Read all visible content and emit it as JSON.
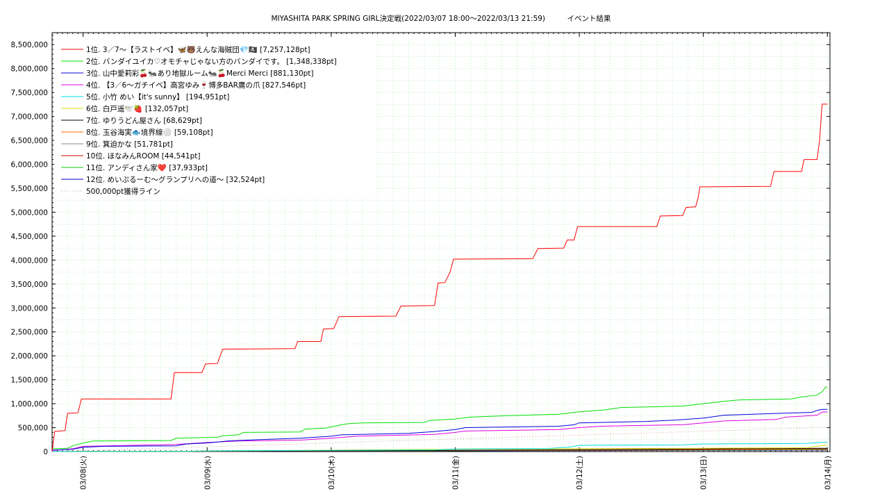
{
  "chart_data": {
    "type": "line",
    "title": "MIYASHITA PARK SPRING GIRL決定戦(2022/03/07 18:00～2022/03/13 21:59)　　　イベント結果",
    "xlabel": "",
    "ylabel": "",
    "x_range": [
      "2022-03-07 18:00",
      "2022-03-14 00:30"
    ],
    "ylim": [
      0,
      8750000
    ],
    "y_ticks": [
      0,
      500000,
      1000000,
      1500000,
      2000000,
      2500000,
      3000000,
      3500000,
      4000000,
      4500000,
      5000000,
      5500000,
      6000000,
      6500000,
      7000000,
      7500000,
      8000000,
      8500000
    ],
    "y_tick_labels": [
      "0",
      "500,000",
      "1,000,000",
      "1,500,000",
      "2,000,000",
      "2,500,000",
      "3,000,000",
      "3,500,000",
      "4,000,000",
      "4,500,000",
      "5,000,000",
      "5,500,000",
      "6,000,000",
      "6,500,000",
      "7,000,000",
      "7,500,000",
      "8,000,000",
      "8,500,000"
    ],
    "x_ticks": [
      "2022-03-08 00:00",
      "2022-03-09 00:00",
      "2022-03-10 00:00",
      "2022-03-11 00:00",
      "2022-03-12 00:00",
      "2022-03-13 00:00",
      "2022-03-14 00:00"
    ],
    "x_tick_labels": [
      "03/08(火)",
      "03/09(水)",
      "03/10(木)",
      "03/11(金)",
      "03/12(土)",
      "03/13(日)",
      "03/14(月)"
    ],
    "grid": true,
    "legend_position": "top-left",
    "series": [
      {
        "name": "1位. 3／7〜【ラストイベ】🦋🐻えんな海賊団💎🏴‍☠️ [7,257,128pt]",
        "color": "#ff0000",
        "style": "step",
        "points": [
          [
            "2022-03-07 18:00",
            0
          ],
          [
            "2022-03-07 18:30",
            420000
          ],
          [
            "2022-03-07 20:30",
            440000
          ],
          [
            "2022-03-07 21:00",
            800000
          ],
          [
            "2022-03-07 23:00",
            810000
          ],
          [
            "2022-03-07 23:40",
            1100000
          ],
          [
            "2022-03-08 17:00",
            1100000
          ],
          [
            "2022-03-08 17:40",
            1650000
          ],
          [
            "2022-03-08 23:00",
            1650000
          ],
          [
            "2022-03-08 23:40",
            1830000
          ],
          [
            "2022-03-09 02:00",
            1840000
          ],
          [
            "2022-03-09 03:00",
            2140000
          ],
          [
            "2022-03-09 17:00",
            2150000
          ],
          [
            "2022-03-09 17:30",
            2300000
          ],
          [
            "2022-03-09 22:00",
            2300000
          ],
          [
            "2022-03-09 22:30",
            2560000
          ],
          [
            "2022-03-10 00:30",
            2570000
          ],
          [
            "2022-03-10 01:30",
            2820000
          ],
          [
            "2022-03-10 12:30",
            2830000
          ],
          [
            "2022-03-10 13:30",
            3040000
          ],
          [
            "2022-03-10 20:00",
            3050000
          ],
          [
            "2022-03-10 20:40",
            3520000
          ],
          [
            "2022-03-10 22:00",
            3530000
          ],
          [
            "2022-03-10 23:00",
            3750000
          ],
          [
            "2022-03-10 23:40",
            4020000
          ],
          [
            "2022-03-11 15:00",
            4030000
          ],
          [
            "2022-03-11 16:00",
            4240000
          ],
          [
            "2022-03-11 21:00",
            4250000
          ],
          [
            "2022-03-11 21:40",
            4420000
          ],
          [
            "2022-03-11 23:00",
            4420000
          ],
          [
            "2022-03-11 23:40",
            4700000
          ],
          [
            "2022-03-12 15:00",
            4700000
          ],
          [
            "2022-03-12 15:40",
            4920000
          ],
          [
            "2022-03-12 20:00",
            4930000
          ],
          [
            "2022-03-12 20:40",
            5100000
          ],
          [
            "2022-03-12 22:30",
            5110000
          ],
          [
            "2022-03-12 23:00",
            5300000
          ],
          [
            "2022-03-12 23:20",
            5530000
          ],
          [
            "2022-03-13 13:00",
            5540000
          ],
          [
            "2022-03-13 13:40",
            5850000
          ],
          [
            "2022-03-13 19:00",
            5850000
          ],
          [
            "2022-03-13 19:30",
            6100000
          ],
          [
            "2022-03-13 22:00",
            6100000
          ],
          [
            "2022-03-13 22:30",
            6500000
          ],
          [
            "2022-03-13 22:50",
            7050000
          ],
          [
            "2022-03-13 23:00",
            7257128
          ],
          [
            "2022-03-14 00:00",
            7257128
          ]
        ]
      },
      {
        "name": "2位. バンダイユイカ♡オモチャじゃない方のバンダイです。 [1,348,338pt]",
        "color": "#00e000",
        "style": "step",
        "points": [
          [
            "2022-03-07 18:00",
            60000
          ],
          [
            "2022-03-07 21:00",
            70000
          ],
          [
            "2022-03-07 22:00",
            120000
          ],
          [
            "2022-03-08 00:00",
            180000
          ],
          [
            "2022-03-08 02:00",
            220000
          ],
          [
            "2022-03-08 17:00",
            230000
          ],
          [
            "2022-03-08 18:00",
            280000
          ],
          [
            "2022-03-09 02:00",
            300000
          ],
          [
            "2022-03-09 03:00",
            330000
          ],
          [
            "2022-03-09 06:00",
            350000
          ],
          [
            "2022-03-09 07:00",
            400000
          ],
          [
            "2022-03-09 18:00",
            410000
          ],
          [
            "2022-03-09 19:00",
            470000
          ],
          [
            "2022-03-09 23:00",
            490000
          ],
          [
            "2022-03-10 00:00",
            520000
          ],
          [
            "2022-03-10 03:00",
            580000
          ],
          [
            "2022-03-10 06:00",
            600000
          ],
          [
            "2022-03-10 18:00",
            610000
          ],
          [
            "2022-03-10 19:00",
            650000
          ],
          [
            "2022-03-11 00:00",
            680000
          ],
          [
            "2022-03-11 03:00",
            720000
          ],
          [
            "2022-03-11 10:00",
            750000
          ],
          [
            "2022-03-11 20:00",
            780000
          ],
          [
            "2022-03-12 00:00",
            830000
          ],
          [
            "2022-03-12 05:00",
            870000
          ],
          [
            "2022-03-12 08:00",
            920000
          ],
          [
            "2022-03-12 20:00",
            950000
          ],
          [
            "2022-03-13 00:00",
            1000000
          ],
          [
            "2022-03-13 04:00",
            1050000
          ],
          [
            "2022-03-13 07:00",
            1080000
          ],
          [
            "2022-03-13 17:00",
            1100000
          ],
          [
            "2022-03-13 19:00",
            1140000
          ],
          [
            "2022-03-13 22:00",
            1180000
          ],
          [
            "2022-03-13 23:00",
            1250000
          ],
          [
            "2022-03-13 23:40",
            1348338
          ],
          [
            "2022-03-14 00:00",
            1348338
          ]
        ]
      },
      {
        "name": "3位. 山中愛莉彩🍒🐜あり地獄ルーム🐜🍒Merci Merci [881,130pt]",
        "color": "#0000dd",
        "style": "step",
        "points": [
          [
            "2022-03-07 18:00",
            30000
          ],
          [
            "2022-03-07 22:00",
            50000
          ],
          [
            "2022-03-08 00:00",
            90000
          ],
          [
            "2022-03-08 04:00",
            110000
          ],
          [
            "2022-03-08 18:00",
            120000
          ],
          [
            "2022-03-08 20:00",
            160000
          ],
          [
            "2022-03-09 00:00",
            180000
          ],
          [
            "2022-03-09 04:00",
            220000
          ],
          [
            "2022-03-09 10:00",
            250000
          ],
          [
            "2022-03-09 18:00",
            280000
          ],
          [
            "2022-03-10 00:00",
            320000
          ],
          [
            "2022-03-10 02:00",
            350000
          ],
          [
            "2022-03-10 15:00",
            380000
          ],
          [
            "2022-03-10 20:00",
            420000
          ],
          [
            "2022-03-11 00:00",
            460000
          ],
          [
            "2022-03-11 02:00",
            500000
          ],
          [
            "2022-03-11 20:00",
            530000
          ],
          [
            "2022-03-11 23:00",
            560000
          ],
          [
            "2022-03-12 00:00",
            600000
          ],
          [
            "2022-03-12 13:00",
            630000
          ],
          [
            "2022-03-12 19:00",
            660000
          ],
          [
            "2022-03-13 00:00",
            700000
          ],
          [
            "2022-03-13 04:00",
            760000
          ],
          [
            "2022-03-13 12:00",
            790000
          ],
          [
            "2022-03-13 21:00",
            820000
          ],
          [
            "2022-03-13 22:00",
            860000
          ],
          [
            "2022-03-13 23:00",
            881130
          ],
          [
            "2022-03-14 00:00",
            881130
          ]
        ]
      },
      {
        "name": "4位. 【3／6〜ガチイベ】高宮ゆみ🍷博多BAR鷹の爪 [827,546pt]",
        "color": "#dd00dd",
        "style": "step",
        "points": [
          [
            "2022-03-07 18:00",
            20000
          ],
          [
            "2022-03-07 22:00",
            60000
          ],
          [
            "2022-03-08 00:00",
            110000
          ],
          [
            "2022-03-08 18:00",
            150000
          ],
          [
            "2022-03-09 00:00",
            190000
          ],
          [
            "2022-03-09 06:00",
            220000
          ],
          [
            "2022-03-09 18:00",
            240000
          ],
          [
            "2022-03-10 00:00",
            280000
          ],
          [
            "2022-03-10 05:00",
            320000
          ],
          [
            "2022-03-10 20:00",
            360000
          ],
          [
            "2022-03-11 00:00",
            400000
          ],
          [
            "2022-03-11 02:00",
            430000
          ],
          [
            "2022-03-11 20:00",
            460000
          ],
          [
            "2022-03-12 00:00",
            500000
          ],
          [
            "2022-03-12 04:00",
            530000
          ],
          [
            "2022-03-12 20:00",
            560000
          ],
          [
            "2022-03-13 00:00",
            600000
          ],
          [
            "2022-03-13 04:00",
            640000
          ],
          [
            "2022-03-13 14:00",
            670000
          ],
          [
            "2022-03-13 16:00",
            720000
          ],
          [
            "2022-03-13 22:00",
            760000
          ],
          [
            "2022-03-13 23:00",
            827546
          ],
          [
            "2022-03-14 00:00",
            827546
          ]
        ]
      },
      {
        "name": "5位. 小竹 めい【it's sunny】 [194,951pt]",
        "color": "#00dddd",
        "style": "step",
        "points": [
          [
            "2022-03-07 18:00",
            0
          ],
          [
            "2022-03-08 20:00",
            5000
          ],
          [
            "2022-03-09 00:00",
            15000
          ],
          [
            "2022-03-10 00:00",
            25000
          ],
          [
            "2022-03-10 20:00",
            35000
          ],
          [
            "2022-03-11 00:00",
            55000
          ],
          [
            "2022-03-11 18:00",
            65000
          ],
          [
            "2022-03-11 22:00",
            90000
          ],
          [
            "2022-03-12 00:00",
            130000
          ],
          [
            "2022-03-12 20:00",
            140000
          ],
          [
            "2022-03-13 00:00",
            160000
          ],
          [
            "2022-03-13 20:00",
            170000
          ],
          [
            "2022-03-13 23:00",
            194951
          ],
          [
            "2022-03-14 00:00",
            194951
          ]
        ]
      },
      {
        "name": "6位. 白戸遥🕊️🍓 [132,057pt]",
        "color": "#e0e000",
        "style": "step",
        "points": [
          [
            "2022-03-07 18:00",
            0
          ],
          [
            "2022-03-09 00:00",
            10000
          ],
          [
            "2022-03-10 00:00",
            30000
          ],
          [
            "2022-03-11 00:00",
            50000
          ],
          [
            "2022-03-12 00:00",
            60000
          ],
          [
            "2022-03-13 00:00",
            70000
          ],
          [
            "2022-03-13 20:00",
            80000
          ],
          [
            "2022-03-13 22:00",
            110000
          ],
          [
            "2022-03-13 23:30",
            132057
          ],
          [
            "2022-03-14 00:00",
            132057
          ]
        ]
      },
      {
        "name": "7位. ゆりうどん屋さん [68,629pt]",
        "color": "#000000",
        "style": "step",
        "points": [
          [
            "2022-03-07 18:00",
            0
          ],
          [
            "2022-03-09 00:00",
            5000
          ],
          [
            "2022-03-10 00:00",
            15000
          ],
          [
            "2022-03-11 00:00",
            25000
          ],
          [
            "2022-03-12 00:00",
            40000
          ],
          [
            "2022-03-13 00:00",
            55000
          ],
          [
            "2022-03-13 23:00",
            68629
          ],
          [
            "2022-03-14 00:00",
            68629
          ]
        ]
      },
      {
        "name": "8位. 玉谷海実🐟境界線⚪️ [59,108pt]",
        "color": "#ff6600",
        "style": "step",
        "points": [
          [
            "2022-03-07 18:00",
            0
          ],
          [
            "2022-03-09 00:00",
            5000
          ],
          [
            "2022-03-10 00:00",
            15000
          ],
          [
            "2022-03-11 00:00",
            25000
          ],
          [
            "2022-03-12 00:00",
            35000
          ],
          [
            "2022-03-13 00:00",
            45000
          ],
          [
            "2022-03-13 23:00",
            59108
          ],
          [
            "2022-03-14 00:00",
            59108
          ]
        ]
      },
      {
        "name": "9位. 箕迫かな [51,781pt]",
        "color": "#888888",
        "style": "step",
        "points": [
          [
            "2022-03-07 18:00",
            0
          ],
          [
            "2022-03-09 00:00",
            5000
          ],
          [
            "2022-03-10 00:00",
            12000
          ],
          [
            "2022-03-11 00:00",
            22000
          ],
          [
            "2022-03-12 00:00",
            32000
          ],
          [
            "2022-03-13 00:00",
            42000
          ],
          [
            "2022-03-13 23:00",
            51781
          ],
          [
            "2022-03-14 00:00",
            51781
          ]
        ]
      },
      {
        "name": "10位. ほなみんROOM [44,541pt]",
        "color": "#dd0000",
        "style": "step",
        "points": [
          [
            "2022-03-07 18:00",
            0
          ],
          [
            "2022-03-09 00:00",
            5000
          ],
          [
            "2022-03-10 00:00",
            12000
          ],
          [
            "2022-03-11 00:00",
            20000
          ],
          [
            "2022-03-12 00:00",
            28000
          ],
          [
            "2022-03-13 00:00",
            36000
          ],
          [
            "2022-03-13 23:00",
            44541
          ],
          [
            "2022-03-14 00:00",
            44541
          ]
        ]
      },
      {
        "name": "11位. アンディさん家❤️ [37,933pt]",
        "color": "#00cc00",
        "style": "step",
        "points": [
          [
            "2022-03-07 18:00",
            0
          ],
          [
            "2022-03-09 00:00",
            4000
          ],
          [
            "2022-03-10 00:00",
            10000
          ],
          [
            "2022-03-11 00:00",
            17000
          ],
          [
            "2022-03-12 00:00",
            24000
          ],
          [
            "2022-03-13 00:00",
            30000
          ],
          [
            "2022-03-13 23:00",
            37933
          ],
          [
            "2022-03-14 00:00",
            37933
          ]
        ]
      },
      {
        "name": "12位. めいぷるーむ〜グランプリへの道〜 [32,524pt]",
        "color": "#0000cc",
        "style": "step",
        "points": [
          [
            "2022-03-07 18:00",
            0
          ],
          [
            "2022-03-09 00:00",
            3000
          ],
          [
            "2022-03-10 00:00",
            8000
          ],
          [
            "2022-03-11 00:00",
            14000
          ],
          [
            "2022-03-12 00:00",
            20000
          ],
          [
            "2022-03-13 00:00",
            26000
          ],
          [
            "2022-03-13 23:00",
            32524
          ],
          [
            "2022-03-14 00:00",
            32524
          ]
        ]
      },
      {
        "name": "500,000pt獲得ライン",
        "color": "#cc9999",
        "style": "dotted",
        "points": [
          [
            "2022-03-07 18:00",
            0
          ],
          [
            "2022-03-13 21:59",
            500000
          ],
          [
            "2022-03-14 00:00",
            500000
          ]
        ]
      }
    ]
  }
}
